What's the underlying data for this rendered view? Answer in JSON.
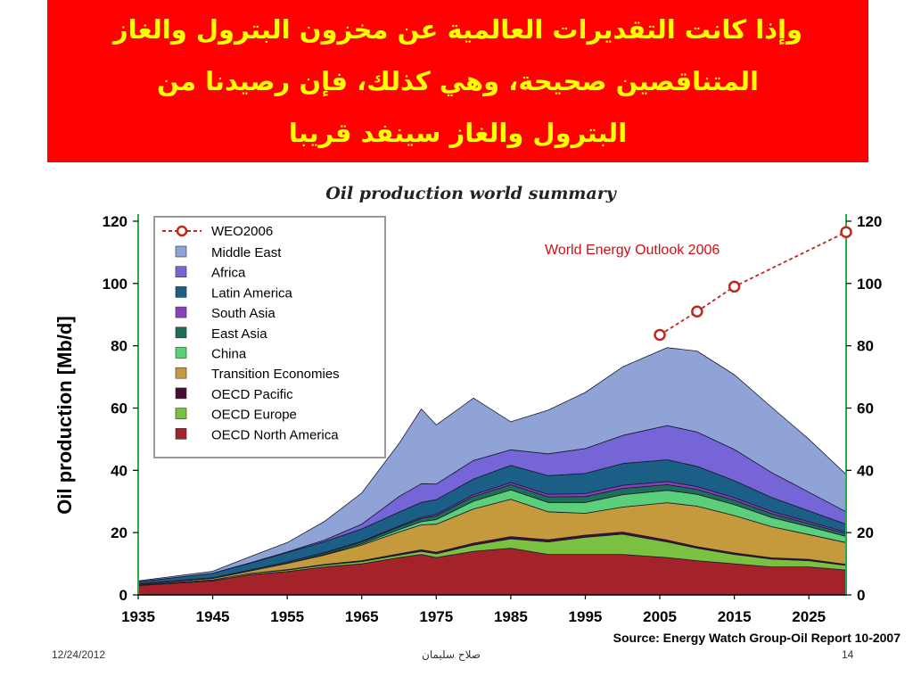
{
  "slide": {
    "title_lines": [
      "وإذا كانت التقديرات العالمية عن مخزون البترول والغاز",
      "المتناقصين صحيحة، وهي كذلك، فإن رصيدنا من",
      "البترول والغاز سينفد قريبا"
    ],
    "footer_date": "12/24/2012",
    "footer_author": "صلاح سليمان",
    "page_number": "14"
  },
  "chart_data": {
    "type": "area",
    "title": "Oil production world summary",
    "ylabel": "Oil production [Mb/d]",
    "xlabel": "",
    "xlim": [
      1935,
      2030
    ],
    "ylim": [
      0,
      120
    ],
    "x_ticks": [
      "1935",
      "1945",
      "1955",
      "1965",
      "1975",
      "1985",
      "1995",
      "2005",
      "2015",
      "2025"
    ],
    "y_ticks": [
      "0",
      "20",
      "40",
      "60",
      "80",
      "100",
      "120"
    ],
    "legend_position": "top-left",
    "grid": false,
    "annotation": "World Energy Outlook 2006",
    "source": "Source: Energy Watch Group-Oil Report 10-2007",
    "x": [
      1935,
      1945,
      1950,
      1955,
      1960,
      1965,
      1970,
      1973,
      1975,
      1980,
      1985,
      1990,
      1995,
      2000,
      2006,
      2010,
      2015,
      2020,
      2025,
      2030
    ],
    "series": [
      {
        "name": "OECD North America",
        "color": "#a4222a",
        "values": [
          3,
          4.5,
          6.5,
          7.5,
          9,
          10,
          12,
          13,
          12,
          14,
          15,
          13,
          13,
          13,
          12,
          11,
          10,
          9,
          9,
          8
        ]
      },
      {
        "name": "OECD Europe",
        "color": "#7ac142",
        "values": [
          0.2,
          0.3,
          0.4,
          0.5,
          0.6,
          0.7,
          0.8,
          1,
          1.2,
          2,
          3,
          4,
          5.5,
          6.5,
          5,
          4,
          3,
          2.5,
          2,
          1.5
        ]
      },
      {
        "name": "OECD Pacific",
        "color": "#4a0b36",
        "values": [
          0,
          0,
          0,
          0.1,
          0.2,
          0.3,
          0.4,
          0.5,
          0.5,
          0.6,
          0.7,
          0.7,
          0.7,
          0.7,
          0.6,
          0.5,
          0.5,
          0.4,
          0.4,
          0.3
        ]
      },
      {
        "name": "Transition Economies",
        "color": "#c49a3c",
        "values": [
          0.3,
          0.5,
          0.8,
          2,
          3,
          5,
          7,
          8,
          9,
          11,
          12,
          9,
          7,
          8,
          12,
          13,
          12,
          10,
          8,
          7
        ]
      },
      {
        "name": "China",
        "color": "#5bcf7a",
        "values": [
          0,
          0,
          0,
          0.1,
          0.2,
          0.4,
          0.8,
          1,
          1.5,
          2.5,
          3,
          3,
          3.5,
          4,
          4,
          3.8,
          3.5,
          3,
          2.5,
          2
        ]
      },
      {
        "name": "East Asia",
        "color": "#1f6e5a",
        "values": [
          0.1,
          0.2,
          0.3,
          0.4,
          0.5,
          0.6,
          0.8,
          1,
          1.2,
          1.5,
          1.7,
          1.8,
          1.9,
          2,
          1.8,
          1.6,
          1.4,
          1.2,
          1,
          0.9
        ]
      },
      {
        "name": "South Asia",
        "color": "#8b3fc0",
        "values": [
          0,
          0,
          0,
          0,
          0.1,
          0.2,
          0.3,
          0.4,
          0.5,
          0.6,
          0.7,
          0.8,
          0.9,
          1,
          1,
          0.9,
          0.8,
          0.7,
          0.6,
          0.5
        ]
      },
      {
        "name": "Latin America",
        "color": "#1b5e86",
        "values": [
          0.6,
          1.5,
          2.2,
          3,
          3.5,
          4,
          4.5,
          4.8,
          4.7,
          5,
          5.5,
          6,
          6.5,
          7,
          7,
          6.5,
          5.5,
          4.5,
          3.5,
          2.5
        ]
      },
      {
        "name": "Africa",
        "color": "#7565d6",
        "values": [
          0,
          0,
          0.1,
          0.2,
          0.5,
          1.5,
          5,
          6,
          5,
          6,
          5,
          7,
          8,
          9,
          11,
          11,
          10,
          8,
          6,
          4
        ]
      },
      {
        "name": "Middle East",
        "color": "#8fa3d6",
        "values": [
          0.3,
          0.6,
          2,
          3,
          6,
          10,
          17,
          24,
          19,
          20,
          9,
          14,
          18,
          22,
          25,
          26,
          24,
          21,
          17,
          12
        ]
      }
    ],
    "weo2006": {
      "name": "WEO2006",
      "color": "#c0281e",
      "x": [
        2005,
        2010,
        2015,
        2030
      ],
      "y": [
        83.5,
        91,
        99,
        116.5
      ]
    }
  }
}
